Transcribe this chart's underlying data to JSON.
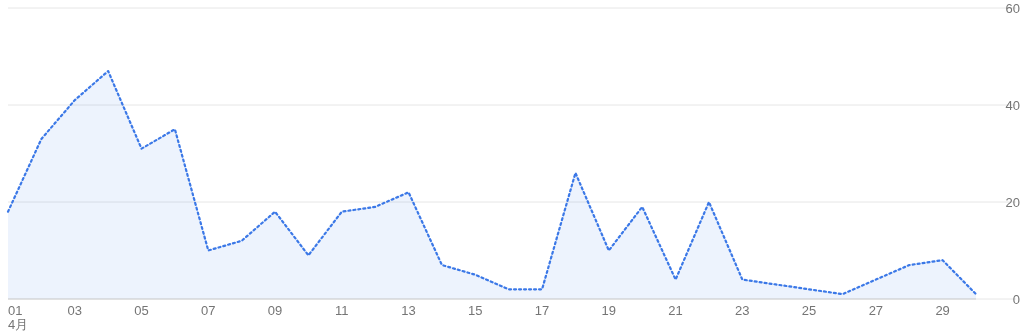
{
  "chart_data": {
    "type": "area",
    "categories": [
      "01",
      null,
      "03",
      null,
      "05",
      null,
      "07",
      null,
      "09",
      null,
      "11",
      null,
      "13",
      null,
      "15",
      null,
      "17",
      null,
      "19",
      null,
      "21",
      null,
      "23",
      null,
      "25",
      null,
      "27",
      null,
      "29",
      null
    ],
    "series": [
      {
        "color": "#3b78e7",
        "values": [
          18,
          33,
          41,
          47,
          31,
          35,
          10,
          12,
          18,
          9,
          18,
          19,
          22,
          7,
          5,
          2,
          2,
          26,
          10,
          19,
          4,
          20,
          4,
          3,
          2,
          1,
          4,
          7,
          8,
          1
        ]
      }
    ],
    "ylim": [
      0,
      60
    ],
    "yticks": [
      0,
      20,
      40,
      60
    ],
    "grid": "y",
    "line_style": "dotted",
    "marker": "none",
    "annotations": [
      "4月"
    ]
  }
}
